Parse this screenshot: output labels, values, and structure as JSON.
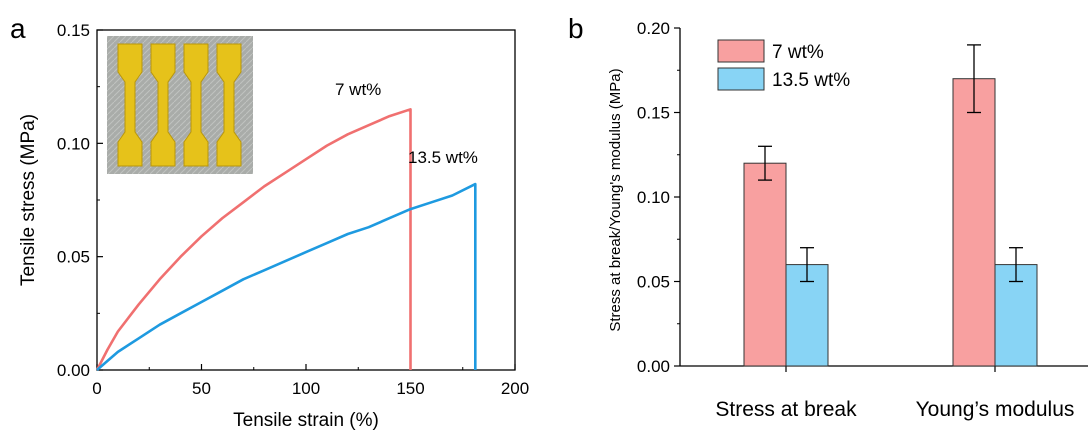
{
  "chart_data": [
    {
      "panel": "a",
      "type": "line",
      "xlabel": "Tensile strain (%)",
      "ylabel": "Tensile stress (MPa)",
      "xlim": [
        0,
        200
      ],
      "ylim": [
        0,
        0.15
      ],
      "xticks": [
        "0",
        "50",
        "100",
        "150",
        "200"
      ],
      "yticks": [
        "0.00",
        "0.05",
        "0.10",
        "0.15"
      ],
      "inset": "photo of four yellow dog-bone tensile specimens",
      "series": [
        {
          "name": "7 wt%",
          "color": "#f07070",
          "x": [
            0,
            5,
            10,
            20,
            30,
            40,
            50,
            60,
            70,
            80,
            90,
            100,
            110,
            120,
            130,
            140,
            150,
            150
          ],
          "y": [
            0,
            0.009,
            0.017,
            0.029,
            0.04,
            0.05,
            0.059,
            0.067,
            0.074,
            0.081,
            0.087,
            0.093,
            0.099,
            0.104,
            0.108,
            0.112,
            0.115,
            0
          ]
        },
        {
          "name": "13.5 wt%",
          "color": "#1e9ae0",
          "x": [
            0,
            5,
            10,
            20,
            30,
            40,
            50,
            60,
            70,
            80,
            90,
            100,
            110,
            120,
            130,
            140,
            150,
            160,
            170,
            181,
            181
          ],
          "y": [
            0,
            0.004,
            0.008,
            0.014,
            0.02,
            0.025,
            0.03,
            0.035,
            0.04,
            0.044,
            0.048,
            0.052,
            0.056,
            0.06,
            0.063,
            0.067,
            0.071,
            0.074,
            0.077,
            0.082,
            0
          ]
        }
      ]
    },
    {
      "panel": "b",
      "type": "bar",
      "ylabel": "Stress at break/Young's modulus (MPa)",
      "ylim": [
        0,
        0.2
      ],
      "yticks": [
        "0.00",
        "0.05",
        "0.10",
        "0.15",
        "0.20"
      ],
      "categories": [
        "Stress at break",
        "Young’s modulus"
      ],
      "legend_position": "top-left",
      "series": [
        {
          "name": "7 wt%",
          "color": "#f8a0a0",
          "values": [
            0.12,
            0.17
          ],
          "errors": [
            0.01,
            0.02
          ]
        },
        {
          "name": "13.5 wt%",
          "color": "#88d4f5",
          "values": [
            0.06,
            0.06
          ],
          "errors": [
            0.01,
            0.01
          ]
        }
      ]
    }
  ]
}
